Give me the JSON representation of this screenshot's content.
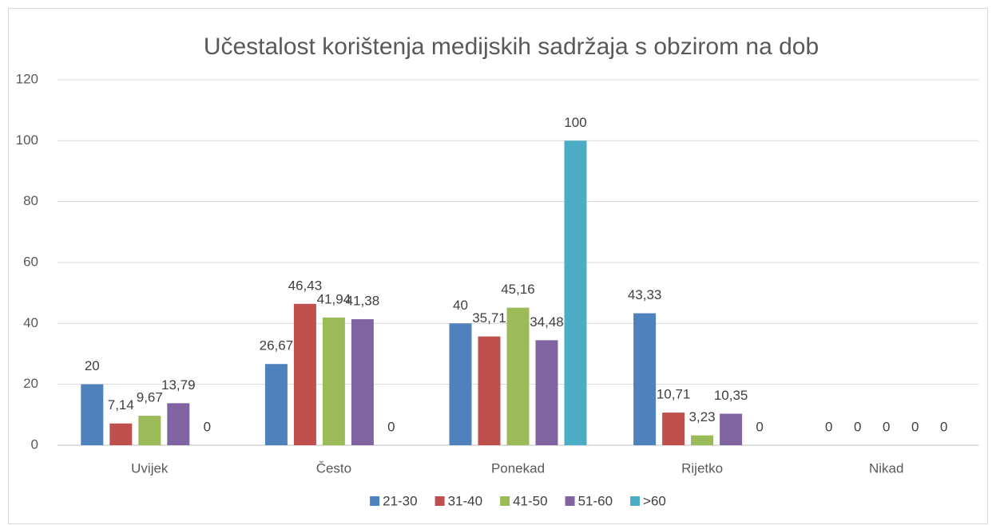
{
  "chart_data": {
    "type": "bar",
    "title": "Učestalost korištenja medijskih sadržaja s obzirom na dob",
    "categories": [
      "Uvijek",
      "Često",
      "Ponekad",
      "Rijetko",
      "Nikad"
    ],
    "series": [
      {
        "name": "21-30",
        "color": "#4f81bd",
        "values": [
          20,
          26.67,
          40,
          43.33,
          0
        ],
        "value_labels": [
          "20",
          "26,67",
          "40",
          "43,33",
          "0"
        ]
      },
      {
        "name": "31-40",
        "color": "#c0504d",
        "values": [
          7.14,
          46.43,
          35.71,
          10.71,
          0
        ],
        "value_labels": [
          "7,14",
          "46,43",
          "35,71",
          "10,71",
          "0"
        ]
      },
      {
        "name": "41-50",
        "color": "#9bbb59",
        "values": [
          9.67,
          41.94,
          45.16,
          3.23,
          0
        ],
        "value_labels": [
          "9,67",
          "41,94",
          "45,16",
          "3,23",
          "0"
        ]
      },
      {
        "name": "51-60",
        "color": "#8064a2",
        "values": [
          13.79,
          41.38,
          34.48,
          10.35,
          0
        ],
        "value_labels": [
          "13,79",
          "41,38",
          "34,48",
          "10,35",
          "0"
        ]
      },
      {
        "name": ">60",
        "color": "#4bacc6",
        "values": [
          0,
          0,
          100,
          0,
          0
        ],
        "value_labels": [
          "0",
          "0",
          "100",
          "0",
          "0"
        ]
      }
    ],
    "ylim": [
      0,
      120
    ],
    "yticks": [
      0,
      20,
      40,
      60,
      80,
      100,
      120
    ],
    "grid": true,
    "legend": "bottom"
  }
}
